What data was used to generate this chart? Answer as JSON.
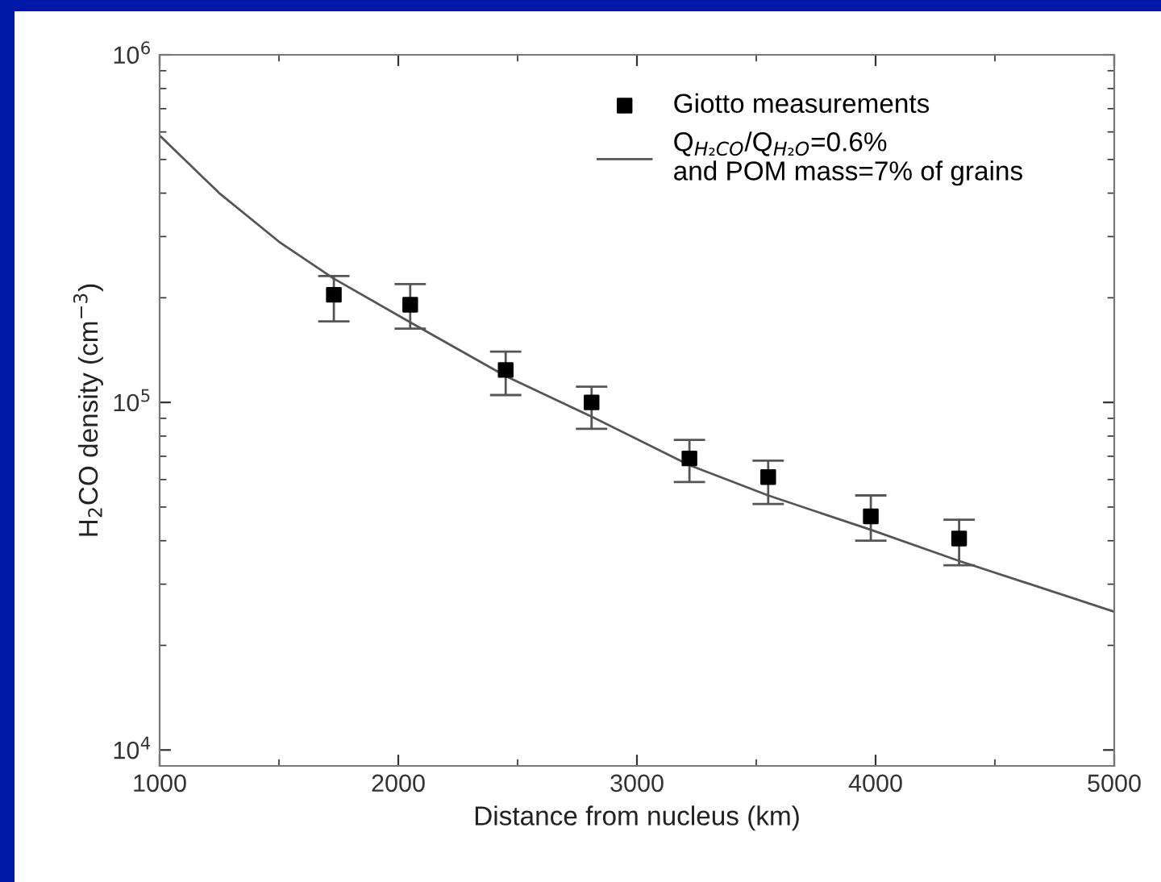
{
  "chart_data": {
    "type": "scatter",
    "xlabel": "Distance from nucleus (km)",
    "ylabel": "H$_{2}$CO density (cm$^{−3}$)",
    "log": "y",
    "xlim": [
      1000,
      5000
    ],
    "xticks": [
      1000,
      2000,
      3000,
      4000,
      5000
    ],
    "ylim": [
      9000,
      1000000
    ],
    "yticks": [
      {
        "value": 10000,
        "label": "10$^{4}$"
      },
      {
        "value": 100000,
        "label": "10$^{5}$"
      },
      {
        "value": 1000000,
        "label": "10$^{6}$"
      }
    ],
    "grid": false,
    "legend": "top right",
    "series": [
      {
        "name": "Giotto measurements",
        "marker": "square",
        "color": "#000000",
        "x": [
          1730,
          2050,
          2450,
          2810,
          3220,
          3550,
          3980,
          4350
        ],
        "values": [
          204000,
          191000,
          124000,
          100000,
          69000,
          61000,
          47000,
          40600
        ],
        "errors": [
          [
            171000,
            231000
          ],
          [
            163000,
            219000
          ],
          [
            105000,
            140000
          ],
          [
            84000,
            111000
          ],
          [
            59000,
            78000
          ],
          [
            51000,
            68000
          ],
          [
            40000,
            54000
          ],
          [
            34000,
            46000
          ]
        ]
      },
      {
        "name": "Q$_{H₂CO}$/Q$_{H₂O}$=0.6%\nand POM mass=7% of grains",
        "type": "line",
        "marker": "none",
        "line_style": "solid",
        "color": "#555555",
        "x": [
          1000,
          1250,
          1500,
          1730,
          2050,
          2450,
          2810,
          3220,
          3550,
          3980,
          4350,
          5000
        ],
        "values": [
          586000,
          400000,
          290000,
          227000,
          170000,
          119000,
          91000,
          66000,
          54000,
          43000,
          35000,
          25000
        ]
      }
    ]
  }
}
